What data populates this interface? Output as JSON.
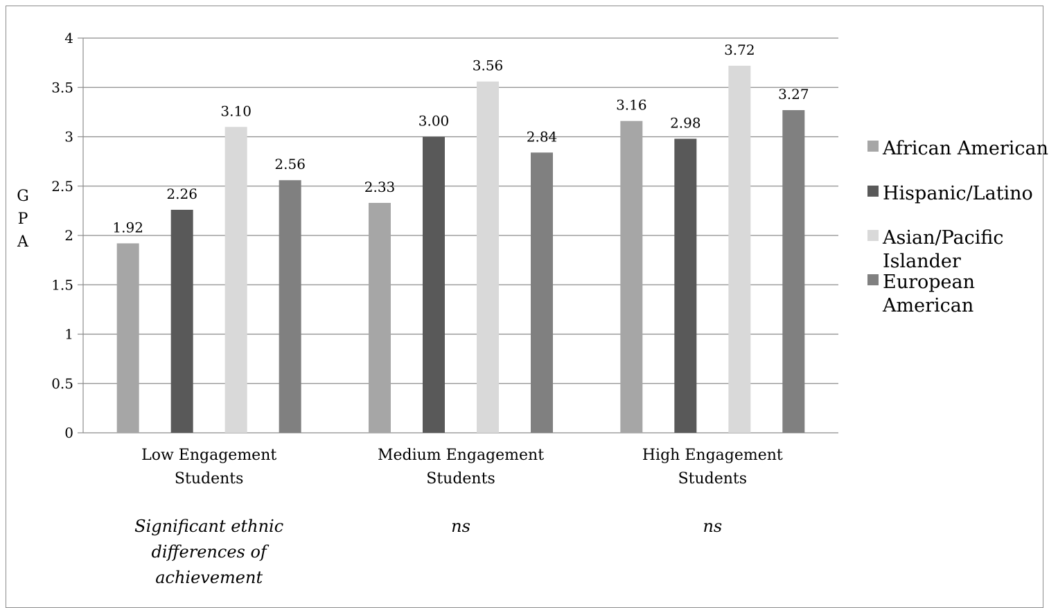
{
  "chart_data": {
    "type": "bar",
    "title": "",
    "xlabel": "",
    "ylabel": "G P A",
    "ylim": [
      0,
      4
    ],
    "yticks": [
      "0",
      "0.5",
      "1",
      "1.5",
      "2",
      "2.5",
      "3",
      "3.5",
      "4"
    ],
    "grid": true,
    "legend_position": "right",
    "categories": [
      [
        "Low Engagement",
        "Students"
      ],
      [
        "Medium Engagement",
        "Students"
      ],
      [
        "High Engagement",
        "Students"
      ]
    ],
    "notes": [
      [
        "Significant ethnic",
        "differences of",
        "achievement"
      ],
      [
        "ns"
      ],
      [
        "ns"
      ]
    ],
    "series": [
      {
        "name": [
          "African American"
        ],
        "color": "#a6a6a6",
        "values": [
          1.92,
          2.33,
          3.16
        ],
        "labels": [
          "1.92",
          "2.33",
          "3.16"
        ]
      },
      {
        "name": [
          "Hispanic/Latino"
        ],
        "color": "#595959",
        "values": [
          2.26,
          3.0,
          2.98
        ],
        "labels": [
          "2.26",
          "3.00",
          "2.98"
        ]
      },
      {
        "name": [
          "Asian/Pacific",
          "Islander"
        ],
        "color": "#d9d9d9",
        "values": [
          3.1,
          3.56,
          3.72
        ],
        "labels": [
          "3.10",
          "3.56",
          "3.72"
        ]
      },
      {
        "name": [
          "European",
          "American"
        ],
        "color": "#808080",
        "values": [
          2.56,
          2.84,
          3.27
        ],
        "labels": [
          "2.56",
          "2.84",
          "3.27"
        ]
      }
    ]
  }
}
